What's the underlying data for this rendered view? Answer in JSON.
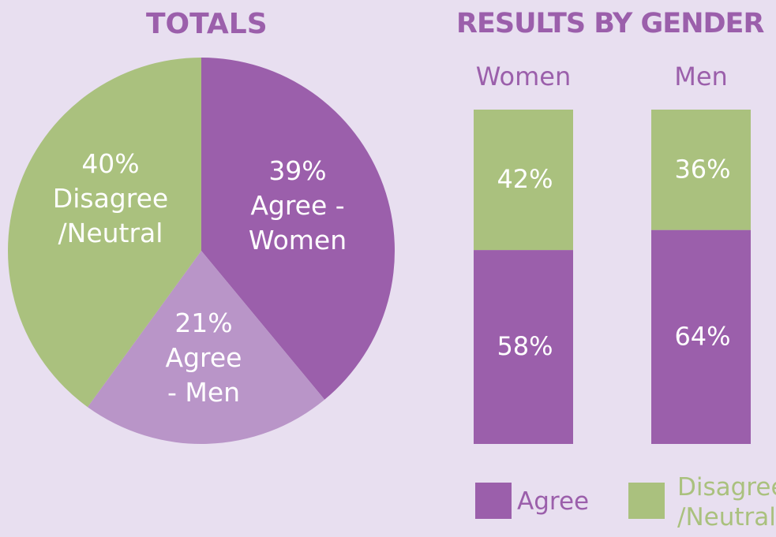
{
  "colors": {
    "background": "#e8dff0",
    "agree_women": "#9b5fab",
    "agree_men": "#b995c8",
    "disagree_neutral": "#aac17e",
    "title": "#9b5fab",
    "label_text": "#ffffff"
  },
  "chart_data": [
    {
      "type": "pie",
      "title": "TOTALS",
      "slices": [
        {
          "label_lines": [
            "39%",
            "Agree -",
            "Women"
          ],
          "value": 39,
          "color": "#9b5fab"
        },
        {
          "label_lines": [
            "21%",
            "Agree",
            "- Men"
          ],
          "value": 21,
          "color": "#b995c8"
        },
        {
          "label_lines": [
            "40%",
            "Disagree",
            "/Neutral"
          ],
          "value": 40,
          "color": "#aac17e"
        }
      ],
      "start_angle_deg": 0,
      "direction": "clockwise"
    },
    {
      "type": "bar",
      "stacked": true,
      "title": "RESULTS BY GENDER",
      "categories": [
        "Women",
        "Men"
      ],
      "series": [
        {
          "name": "Agree",
          "values": [
            58,
            64
          ],
          "labels": [
            "58%",
            "64%"
          ],
          "color": "#9b5fab"
        },
        {
          "name": "Disagree /Neutral",
          "values": [
            42,
            36
          ],
          "labels": [
            "42%",
            "36%"
          ],
          "color": "#aac17e"
        }
      ],
      "ylim": [
        0,
        100
      ],
      "legend": {
        "position": "bottom",
        "items": [
          {
            "lines": [
              "Agree"
            ],
            "color": "#9b5fab"
          },
          {
            "lines": [
              "Disagree",
              "/Neutral"
            ],
            "color": "#aac17e"
          }
        ]
      }
    }
  ]
}
